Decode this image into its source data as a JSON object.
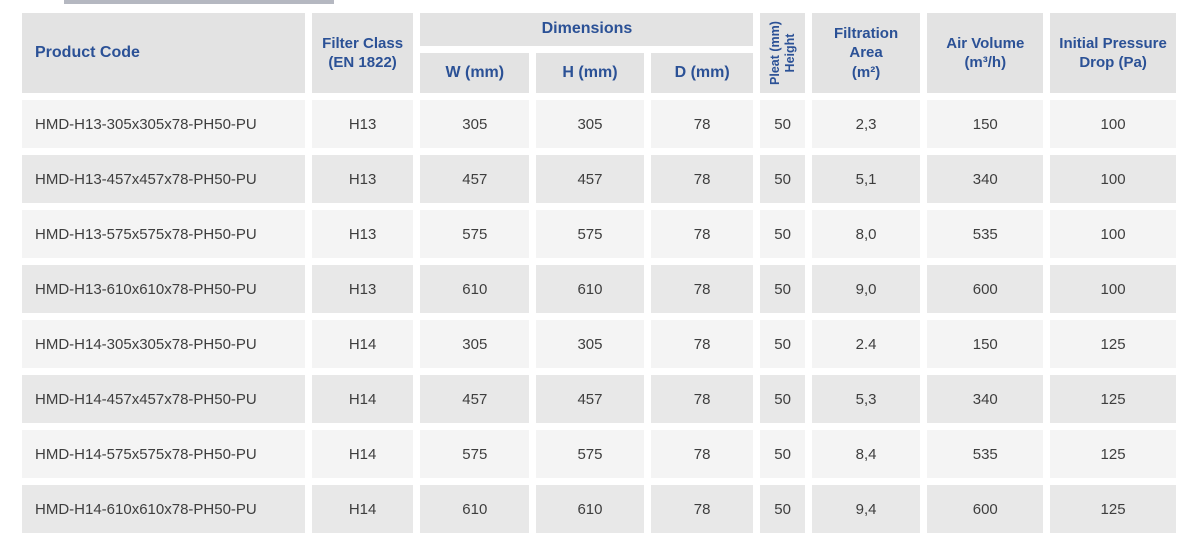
{
  "table": {
    "headers": {
      "product_code": "Product Code",
      "filter_class": "Filter Class\n(EN 1822)",
      "dimensions_group": "Dimensions",
      "dim_w": "W (mm)",
      "dim_h": "H (mm)",
      "dim_d": "D (mm)",
      "pleat_height": "Pleat (mm)\nHeight",
      "filtration_area": "Filtration\nArea\n(m²)",
      "air_volume": "Air Volume\n(m³/h)",
      "initial_pressure_drop": "Initial Pressure\nDrop (Pa)"
    },
    "column_keys": [
      "product-code",
      "filter-class",
      "dim-w",
      "dim-h",
      "dim-d",
      "pleat-height",
      "filtration-area",
      "air-volume",
      "initial-pressure-drop"
    ],
    "rows": [
      [
        "HMD-H13-305x305x78-PH50-PU",
        "H13",
        "305",
        "305",
        "78",
        "50",
        "2,3",
        "150",
        "100"
      ],
      [
        "HMD-H13-457x457x78-PH50-PU",
        "H13",
        "457",
        "457",
        "78",
        "50",
        "5,1",
        "340",
        "100"
      ],
      [
        "HMD-H13-575x575x78-PH50-PU",
        "H13",
        "575",
        "575",
        "78",
        "50",
        "8,0",
        "535",
        "100"
      ],
      [
        "HMD-H13-610x610x78-PH50-PU",
        "H13",
        "610",
        "610",
        "78",
        "50",
        "9,0",
        "600",
        "100"
      ],
      [
        "HMD-H14-305x305x78-PH50-PU",
        "H14",
        "305",
        "305",
        "78",
        "50",
        "2.4",
        "150",
        "125"
      ],
      [
        "HMD-H14-457x457x78-PH50-PU",
        "H14",
        "457",
        "457",
        "78",
        "50",
        "5,3",
        "340",
        "125"
      ],
      [
        "HMD-H14-575x575x78-PH50-PU",
        "H14",
        "575",
        "575",
        "78",
        "50",
        "8,4",
        "535",
        "125"
      ],
      [
        "HMD-H14-610x610x78-PH50-PU",
        "H14",
        "610",
        "610",
        "78",
        "50",
        "9,4",
        "600",
        "125"
      ]
    ]
  },
  "colors": {
    "header_text": "#2B5196",
    "header_bg": "#E3E3E3",
    "row_odd_bg": "#F4F4F4",
    "row_even_bg": "#E8E8E8",
    "data_text": "#3E3E3E"
  }
}
